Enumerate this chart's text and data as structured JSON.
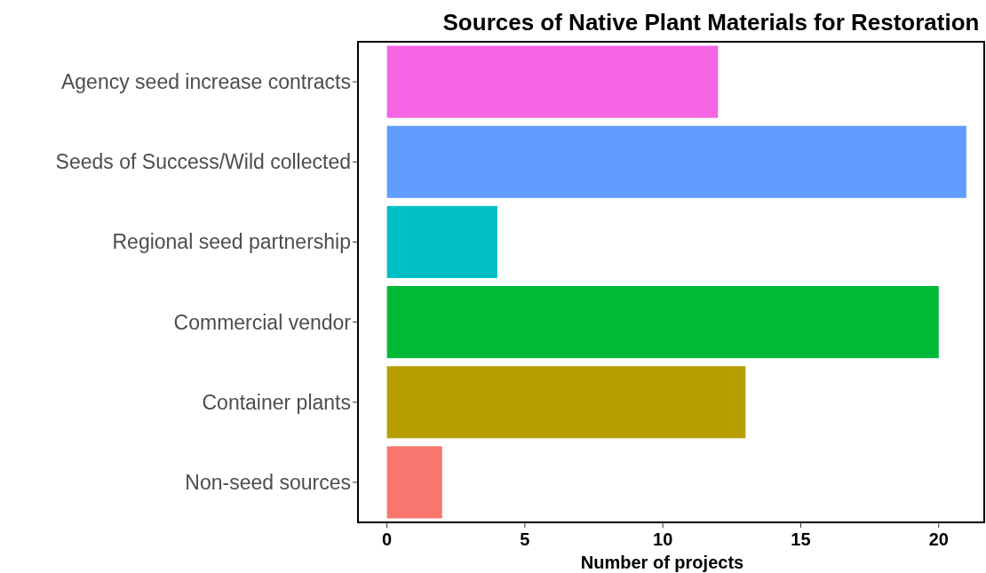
{
  "chart_data": {
    "type": "bar",
    "orientation": "horizontal",
    "title": "Sources of Native Plant Materials for Restoration",
    "xlabel": "Number of projects",
    "categories": [
      "Agency seed increase contracts",
      "Seeds of Success/Wild collected",
      "Regional seed partnership",
      "Commercial vendor",
      "Container plants",
      "Non-seed sources"
    ],
    "values": [
      12,
      21,
      4,
      20,
      13,
      2
    ],
    "colors": [
      "#f564e3",
      "#619cff",
      "#00bfc4",
      "#00ba38",
      "#b79f00",
      "#f8766d"
    ],
    "xlim": [
      -1.05,
      21.65
    ],
    "xticks": [
      0,
      5,
      10,
      15,
      20
    ],
    "grid": false
  }
}
